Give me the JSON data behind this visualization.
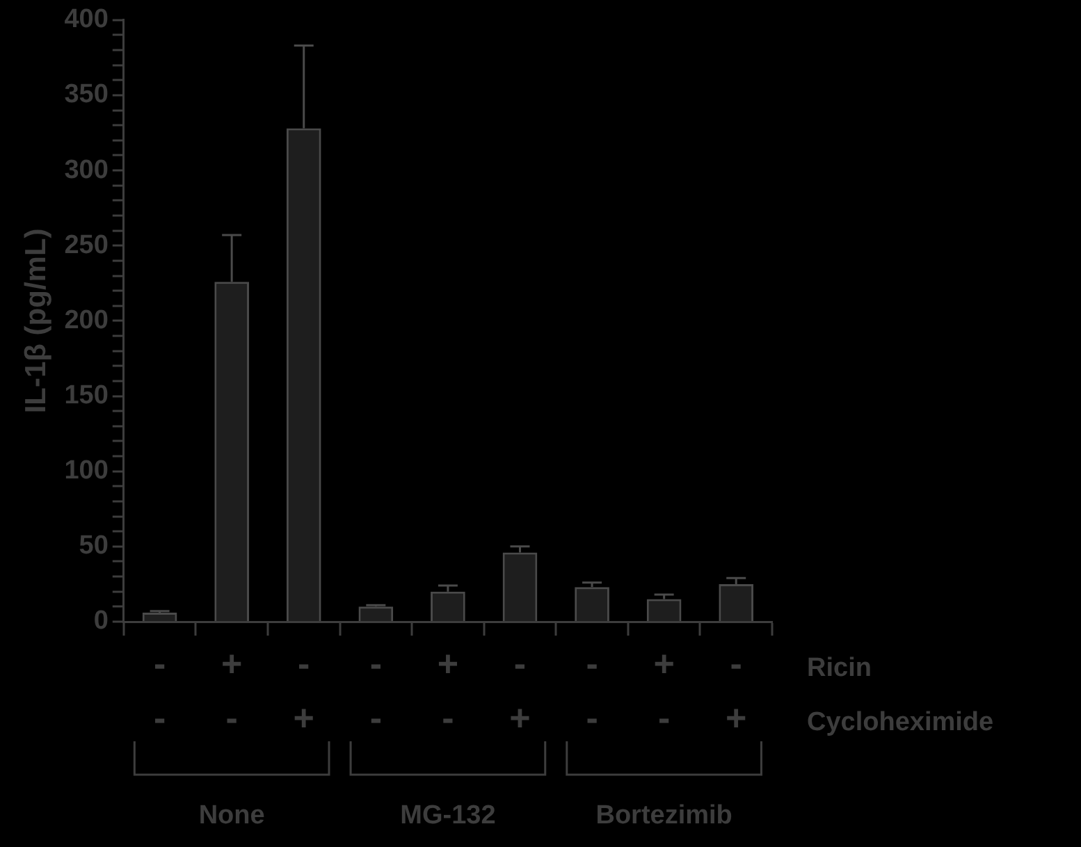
{
  "chart_data": {
    "type": "bar",
    "ylabel": "IL-1β (pg/mL)",
    "categories": [
      "-\n-",
      "+\n-",
      "-\n+",
      "-\n-",
      "+\n-",
      "-\n+",
      "-\n-",
      "+\n-",
      "-\n+"
    ],
    "values": [
      6,
      226,
      328,
      10,
      20,
      46,
      23,
      15,
      25
    ],
    "errors": [
      [
        6,
        7
      ],
      [
        226,
        257
      ],
      [
        328,
        383
      ],
      [
        10,
        11
      ],
      [
        20,
        24
      ],
      [
        46,
        50
      ],
      [
        23,
        26
      ],
      [
        15,
        18
      ],
      [
        25,
        29
      ]
    ],
    "color": "#4a4a4a",
    "ylim": [
      0,
      400
    ],
    "yticks": [
      0,
      {
        "value": 10,
        "label": null
      },
      {
        "value": 20,
        "label": null
      },
      {
        "value": 30,
        "label": null
      },
      {
        "value": 40,
        "label": null
      },
      50,
      {
        "value": 60,
        "label": null
      },
      {
        "value": 70,
        "label": null
      },
      {
        "value": 80,
        "label": null
      },
      {
        "value": 90,
        "label": null
      },
      100,
      {
        "value": 110,
        "label": null
      },
      {
        "value": 120,
        "label": null
      },
      {
        "value": 130,
        "label": null
      },
      {
        "value": 140,
        "label": null
      },
      150,
      {
        "value": 160,
        "label": null
      },
      {
        "value": 170,
        "label": null
      },
      {
        "value": 180,
        "label": null
      },
      {
        "value": 190,
        "label": null
      },
      200,
      {
        "value": 210,
        "label": null
      },
      {
        "value": 220,
        "label": null
      },
      {
        "value": 230,
        "label": null
      },
      {
        "value": 240,
        "label": null
      },
      250,
      {
        "value": 260,
        "label": null
      },
      {
        "value": 270,
        "label": null
      },
      {
        "value": 280,
        "label": null
      },
      {
        "value": 290,
        "label": null
      },
      300,
      {
        "value": 310,
        "label": null
      },
      {
        "value": 320,
        "label": null
      },
      {
        "value": 330,
        "label": null
      },
      {
        "value": 340,
        "label": null
      },
      350,
      {
        "value": 360,
        "label": null
      },
      {
        "value": 370,
        "label": null
      },
      {
        "value": 380,
        "label": null
      },
      {
        "value": 390,
        "label": null
      },
      400
    ],
    "annotations": [
      "Ricin",
      "Cycloheximide",
      "None",
      "MG-132",
      "Bortezimib"
    ],
    "grid": false,
    "legend": false
  }
}
